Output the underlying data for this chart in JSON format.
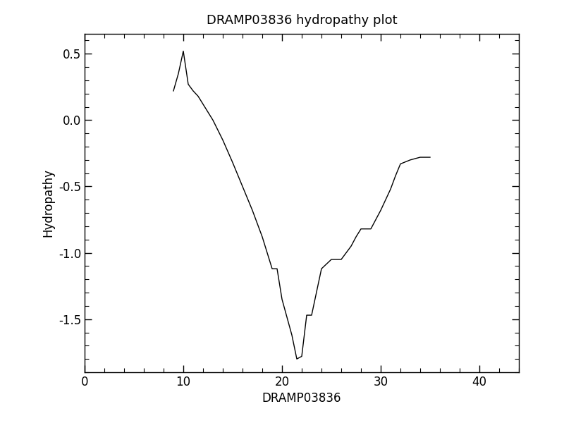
{
  "title": "DRAMP03836 hydropathy plot",
  "xlabel": "DRAMP03836",
  "ylabel": "Hydropathy",
  "xlim": [
    0,
    44
  ],
  "ylim": [
    -1.9,
    0.65
  ],
  "xticks": [
    0,
    10,
    20,
    30,
    40
  ],
  "yticks": [
    -1.5,
    -1.0,
    -0.5,
    0.0,
    0.5
  ],
  "line_color": "black",
  "line_width": 1.0,
  "background_color": "white",
  "title_fontsize": 13,
  "label_fontsize": 12,
  "tick_fontsize": 12,
  "x": [
    9.0,
    9.5,
    10.0,
    10.5,
    11.0,
    11.5,
    12.0,
    13.0,
    14.0,
    15.0,
    16.0,
    17.0,
    18.0,
    19.0,
    19.5,
    20.0,
    21.0,
    21.5,
    22.0,
    22.5,
    23.0,
    24.0,
    25.0,
    26.0,
    27.0,
    27.5,
    28.0,
    28.5,
    29.0,
    29.5,
    30.0,
    30.5,
    31.0,
    31.5,
    32.0,
    33.0,
    34.0,
    35.0
  ],
  "y": [
    0.22,
    0.35,
    0.52,
    0.27,
    0.22,
    0.18,
    0.12,
    0.0,
    -0.15,
    -0.32,
    -0.5,
    -0.68,
    -0.88,
    -1.12,
    -1.12,
    -1.35,
    -1.62,
    -1.8,
    -1.78,
    -1.47,
    -1.47,
    -1.12,
    -1.05,
    -1.05,
    -0.95,
    -0.88,
    -0.82,
    -0.82,
    -0.82,
    -0.75,
    -0.68,
    -0.6,
    -0.52,
    -0.42,
    -0.33,
    -0.3,
    -0.28,
    -0.28
  ]
}
